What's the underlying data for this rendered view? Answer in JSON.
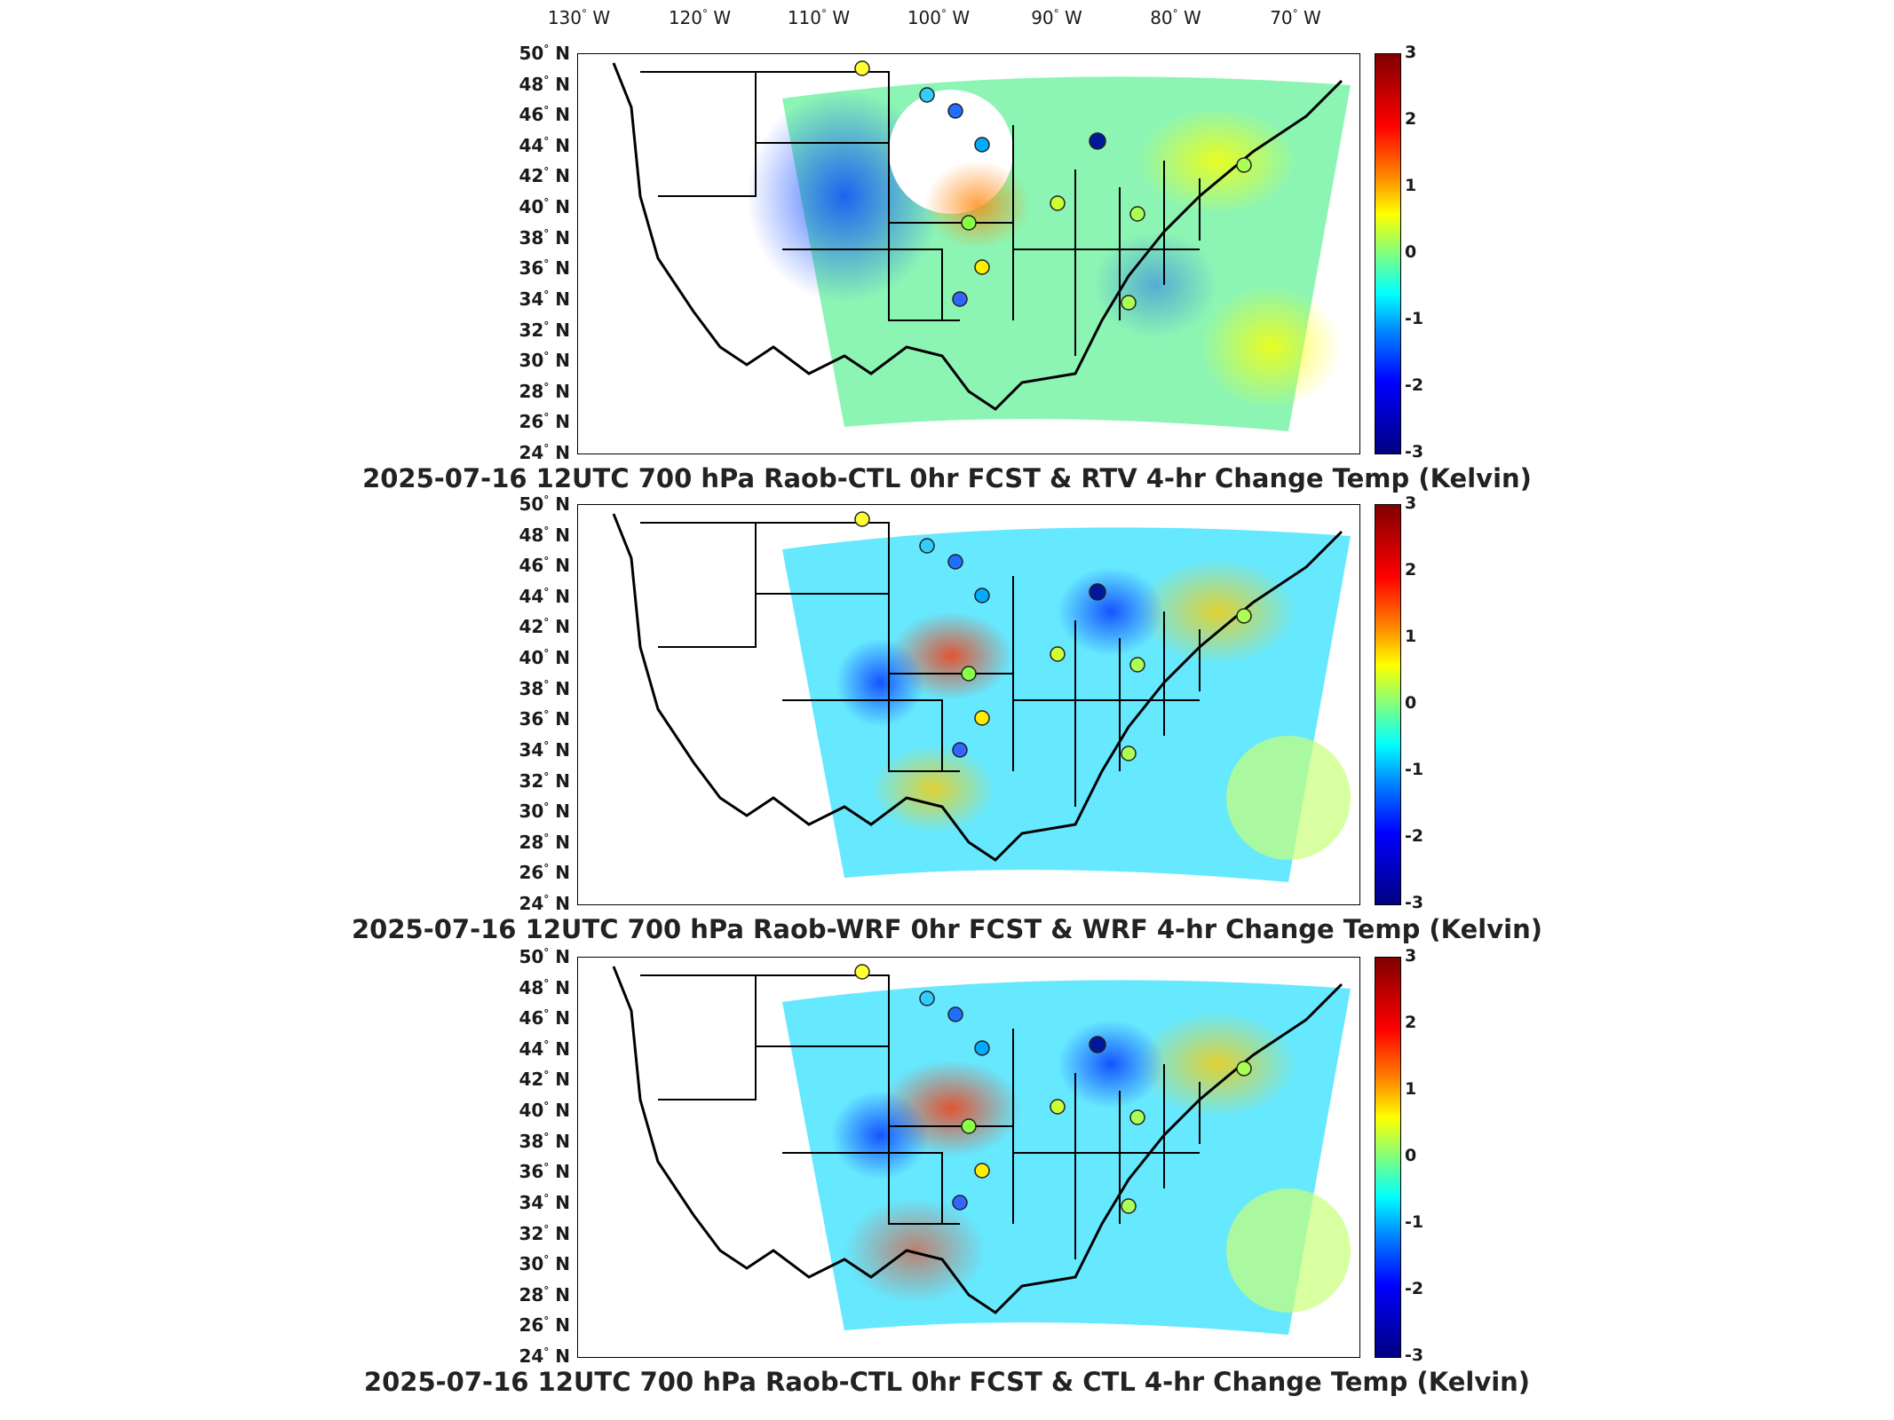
{
  "longitude_labels": [
    "130",
    "120",
    "110",
    "100",
    "90",
    "80",
    "70"
  ],
  "longitude_suffix": "W",
  "latitude_labels": [
    "50",
    "48",
    "46",
    "44",
    "42",
    "40",
    "38",
    "36",
    "34",
    "32",
    "30",
    "28",
    "26",
    "24"
  ],
  "latitude_suffix": "N",
  "degree_symbol": "°",
  "colorbar_ticks": [
    "3",
    "2",
    "1",
    "0",
    "-1",
    "-2",
    "-3"
  ],
  "panels": [
    {
      "title": "2025-07-16 12UTC 700 hPa Raob-CTL 0hr FCST & RTV 4-hr Change Temp (Kelvin)"
    },
    {
      "title": "2025-07-16 12UTC 700 hPa Raob-WRF 0hr FCST & WRF 4-hr Change Temp (Kelvin)"
    },
    {
      "title": "2025-07-16 12UTC 700 hPa Raob-CTL 0hr FCST & CTL 4-hr Change Temp (Kelvin)"
    }
  ],
  "colors": {
    "dark_red": "#800000",
    "red": "#ff0000",
    "orange": "#ff8000",
    "yellow": "#ffff00",
    "green": "#80ff80",
    "cyan": "#00ffff",
    "blue": "#0080ff",
    "dark_blue": "#000080"
  }
}
